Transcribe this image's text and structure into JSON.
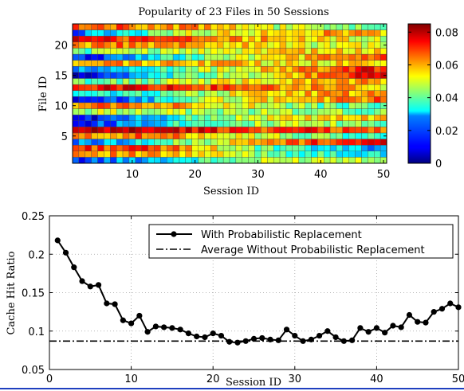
{
  "colors": {
    "line": "#000000",
    "grid": "#a0a0a0",
    "rule": "#1f3fbf"
  },
  "chart_data": [
    {
      "type": "heatmap",
      "title": "Popularity of 23 Files in 50 Sessions",
      "xlabel": "Session ID",
      "ylabel": "File ID",
      "x_range": [
        1,
        50
      ],
      "y_range": [
        1,
        23
      ],
      "x_ticks": [
        10,
        20,
        30,
        40,
        50
      ],
      "y_ticks": [
        5,
        10,
        15,
        20
      ],
      "colormap": "jet",
      "value_range": [
        0,
        0.085
      ],
      "colorbar_ticks": [
        "0",
        "0.02",
        "0.04",
        "0.06",
        "0.08"
      ],
      "colorbar_tick_values": [
        0,
        0.02,
        0.04,
        0.06,
        0.08
      ],
      "rows_bottom_to_top": [
        [
          0.015,
          0.025,
          0.035,
          0.045,
          0.05,
          0.05
        ],
        [
          0.065,
          0.06,
          0.055,
          0.045,
          0.035,
          0.03
        ],
        [
          0.07,
          0.07,
          0.06,
          0.04,
          0.03,
          0.025
        ],
        [
          0.02,
          0.03,
          0.045,
          0.06,
          0.07,
          0.075
        ],
        [
          0.06,
          0.065,
          0.06,
          0.05,
          0.04,
          0.035
        ],
        [
          0.075,
          0.08,
          0.075,
          0.07,
          0.07,
          0.065
        ],
        [
          0.01,
          0.025,
          0.04,
          0.045,
          0.045,
          0.04
        ],
        [
          0.008,
          0.02,
          0.04,
          0.05,
          0.055,
          0.055
        ],
        [
          0.045,
          0.05,
          0.045,
          0.045,
          0.045,
          0.04
        ],
        [
          0.065,
          0.065,
          0.06,
          0.05,
          0.04,
          0.04
        ],
        [
          0.005,
          0.02,
          0.045,
          0.055,
          0.06,
          0.065
        ],
        [
          0.03,
          0.035,
          0.045,
          0.055,
          0.06,
          0.06
        ],
        [
          0.075,
          0.075,
          0.07,
          0.065,
          0.06,
          0.055
        ],
        [
          0.04,
          0.04,
          0.05,
          0.055,
          0.06,
          0.06
        ],
        [
          0.005,
          0.02,
          0.04,
          0.05,
          0.065,
          0.075
        ],
        [
          0.02,
          0.03,
          0.045,
          0.055,
          0.065,
          0.075
        ],
        [
          0.06,
          0.06,
          0.06,
          0.055,
          0.055,
          0.055
        ],
        [
          0.01,
          0.025,
          0.04,
          0.05,
          0.06,
          0.065
        ],
        [
          0.04,
          0.045,
          0.05,
          0.055,
          0.055,
          0.055
        ],
        [
          0.06,
          0.065,
          0.06,
          0.055,
          0.05,
          0.05
        ],
        [
          0.075,
          0.07,
          0.065,
          0.06,
          0.055,
          0.05
        ],
        [
          0.02,
          0.035,
          0.05,
          0.055,
          0.06,
          0.06
        ],
        [
          0.07,
          0.065,
          0.06,
          0.05,
          0.045,
          0.04
        ]
      ],
      "row_keypoint_sessions": [
        1,
        10,
        20,
        30,
        40,
        50
      ]
    },
    {
      "type": "line",
      "xlabel": "Session ID",
      "ylabel": "Cache Hit Ratio",
      "xlim": [
        0,
        50
      ],
      "ylim": [
        0.05,
        0.25
      ],
      "x_ticks": [
        0,
        10,
        20,
        30,
        40,
        50
      ],
      "y_ticks": [
        0.05,
        0.1,
        0.15,
        0.2,
        0.25
      ],
      "y_tick_labels": [
        "0.05",
        "0.1",
        "0.15",
        "0.2",
        "0.25"
      ],
      "grid": true,
      "legend_position": "top-right",
      "series": [
        {
          "name": "With Probabilistic Replacement",
          "style": "solid-with-markers",
          "x": [
            1,
            2,
            3,
            4,
            5,
            6,
            7,
            8,
            9,
            10,
            11,
            12,
            13,
            14,
            15,
            16,
            17,
            18,
            19,
            20,
            21,
            22,
            23,
            24,
            25,
            26,
            27,
            28,
            29,
            30,
            31,
            32,
            33,
            34,
            35,
            36,
            37,
            38,
            39,
            40,
            41,
            42,
            43,
            44,
            45,
            46,
            47,
            48,
            49,
            50
          ],
          "y": [
            0.218,
            0.202,
            0.183,
            0.165,
            0.158,
            0.16,
            0.136,
            0.135,
            0.114,
            0.11,
            0.12,
            0.099,
            0.106,
            0.105,
            0.104,
            0.102,
            0.097,
            0.093,
            0.092,
            0.097,
            0.094,
            0.086,
            0.085,
            0.087,
            0.09,
            0.091,
            0.089,
            0.088,
            0.102,
            0.094,
            0.087,
            0.089,
            0.094,
            0.1,
            0.092,
            0.087,
            0.088,
            0.104,
            0.099,
            0.104,
            0.098,
            0.107,
            0.105,
            0.121,
            0.112,
            0.111,
            0.125,
            0.129,
            0.136,
            0.131
          ]
        },
        {
          "name": "Average Without Probabilistic Replacement",
          "style": "dash-dot",
          "x": [
            0,
            50
          ],
          "y": [
            0.087,
            0.087
          ]
        }
      ]
    }
  ]
}
